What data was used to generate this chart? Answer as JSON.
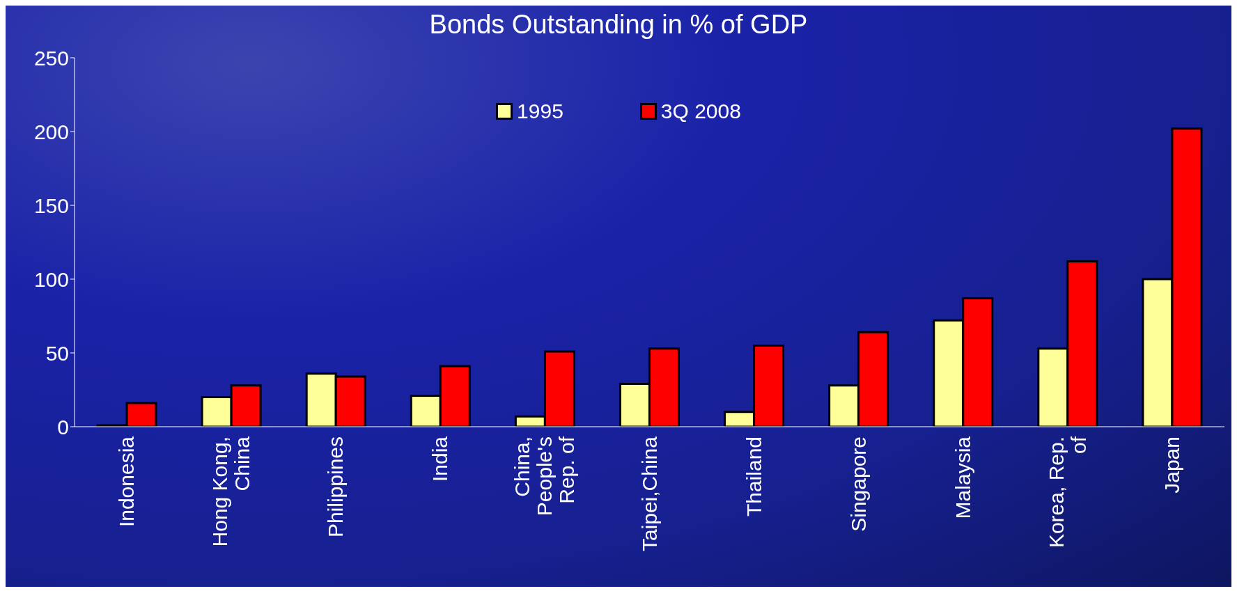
{
  "chart_data": {
    "type": "bar",
    "title": "Bonds Outstanding in % of GDP",
    "categories": [
      "Indonesia",
      "Hong Kong, China",
      "Philippines",
      "India",
      "China, People's Rep. of",
      "Taipei,China",
      "Thailand",
      "Singapore",
      "Malaysia",
      "Korea, Rep. of",
      "Japan"
    ],
    "series": [
      {
        "name": "1995",
        "color": "#ffff99",
        "values": [
          1,
          20,
          36,
          21,
          7,
          29,
          10,
          28,
          72,
          53,
          100
        ]
      },
      {
        "name": "3Q 2008",
        "color": "#ff0000",
        "values": [
          16,
          28,
          34,
          41,
          51,
          53,
          55,
          64,
          87,
          112,
          202
        ]
      }
    ],
    "ylim": [
      0,
      250
    ],
    "yticks": [
      0,
      50,
      100,
      150,
      200,
      250
    ],
    "grid": false,
    "legend": "top"
  }
}
